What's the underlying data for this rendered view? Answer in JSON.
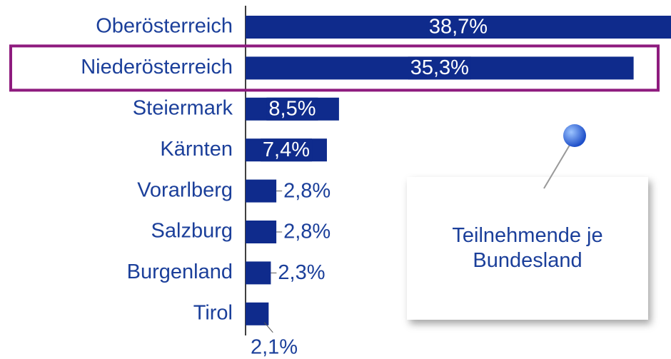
{
  "chart_data": {
    "type": "bar",
    "orientation": "horizontal",
    "categories": [
      "Oberösterreich",
      "Niederösterreich",
      "Steiermark",
      "Kärnten",
      "Vorarlberg",
      "Salzburg",
      "Burgenland",
      "Tirol"
    ],
    "values": [
      38.7,
      35.3,
      8.5,
      7.4,
      2.8,
      2.8,
      2.3,
      2.1
    ],
    "value_labels": [
      "38,7%",
      "35,3%",
      "8,5%",
      "7,4%",
      "2,8%",
      "2,8%",
      "2,3%",
      "2,1%"
    ],
    "color": "#0f2b8c",
    "highlight": "Niederösterreich",
    "annotation": "Teilnehmende je Bundesland"
  }
}
